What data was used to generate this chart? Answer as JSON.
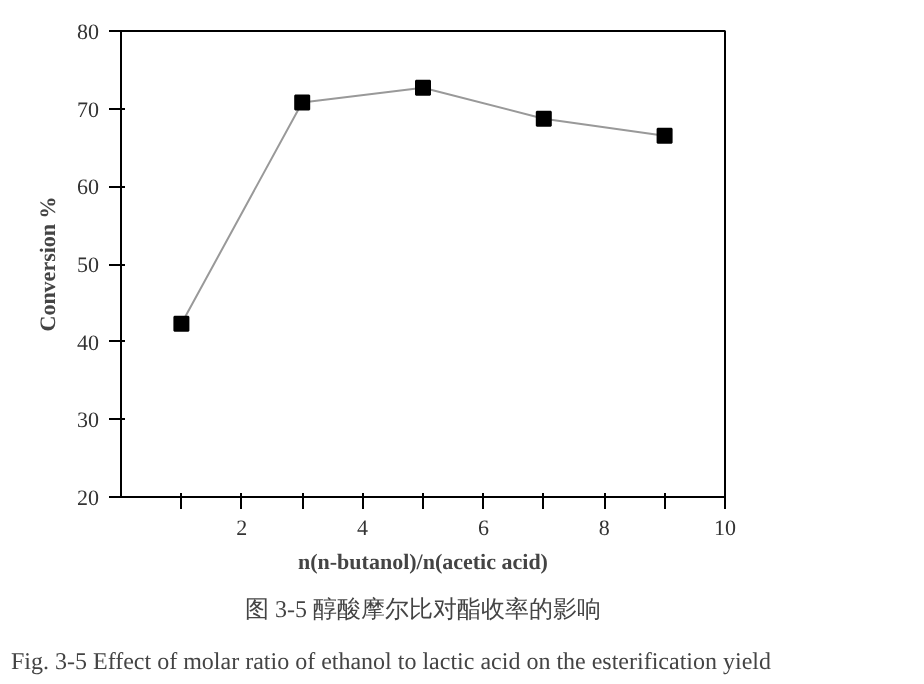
{
  "chart_data": {
    "type": "line",
    "xlabel": "n(n-butanol)/n(acetic acid)",
    "ylabel": "Conversion %",
    "x": [
      1,
      3,
      5,
      7,
      9
    ],
    "series": [
      {
        "color": "#999999",
        "values": [
          42.3,
          70.8,
          72.7,
          68.7,
          66.5
        ]
      }
    ],
    "marker": "square",
    "line_style": "solid",
    "grid": false,
    "xlim": [
      0,
      10
    ],
    "ylim": [
      20,
      80
    ],
    "xticks": [
      {
        "value": 1,
        "label": null
      },
      2,
      {
        "value": 3,
        "label": null
      },
      4,
      {
        "value": 5,
        "label": null
      },
      6,
      {
        "value": 7,
        "label": null
      },
      8,
      {
        "value": 9,
        "label": null
      },
      10
    ],
    "yticks": [
      20,
      30,
      40,
      50,
      60,
      70,
      80
    ],
    "annotations": [
      "图 3-5 醇酸摩尔比对酯收率的影响",
      "Fig. 3-5 Effect of molar ratio of ethanol to lactic acid on the esterification yield"
    ]
  }
}
